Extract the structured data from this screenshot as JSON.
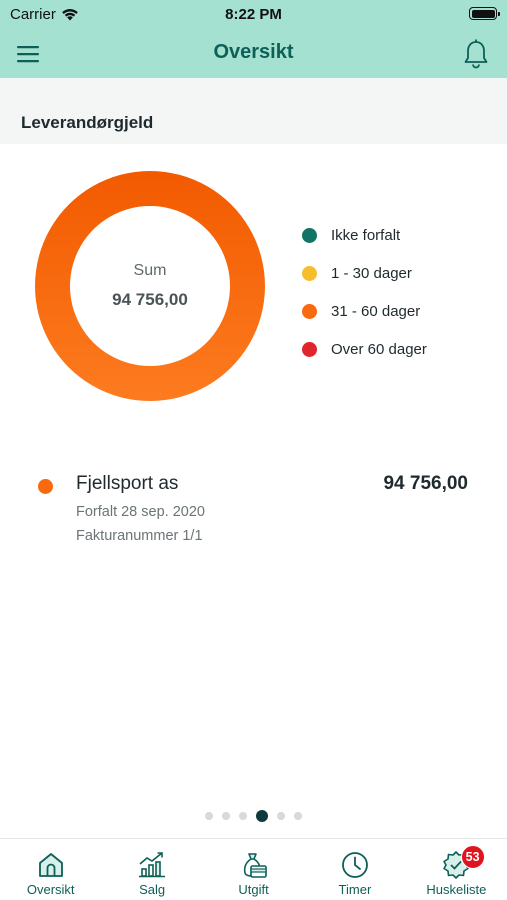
{
  "status_bar": {
    "carrier": "Carrier",
    "time": "8:22 PM"
  },
  "nav": {
    "title": "Oversikt"
  },
  "section": {
    "title": "Leverandørgjeld"
  },
  "donut": {
    "sum_label": "Sum",
    "sum_value": "94 756,00",
    "colors": {
      "ring_start": "#f25a00",
      "ring_end": "#fd7b1f"
    }
  },
  "chart_data": {
    "type": "pie",
    "categories": [
      "Ikke forfalt",
      "1 - 30 dager",
      "31 - 60 dager",
      "Over 60 dager"
    ],
    "values": [
      0,
      0,
      94756.0,
      0
    ],
    "colors": [
      "#127466",
      "#f6bd2f",
      "#f96a0f",
      "#e0262c"
    ],
    "legend": "right"
  },
  "legend": [
    {
      "label": "Ikke forfalt",
      "color": "#127466"
    },
    {
      "label": "1 - 30 dager",
      "color": "#f6bd2f"
    },
    {
      "label": "31 - 60 dager",
      "color": "#f96a0f"
    },
    {
      "label": "Over 60 dager",
      "color": "#e0262c"
    }
  ],
  "entry": {
    "name": "Fjellsport as",
    "amount": "94 756,00",
    "due": "Forfalt 28 sep. 2020",
    "invoice": "Fakturanummer 1/1"
  },
  "pager": {
    "count": 6,
    "active_index": 3
  },
  "tabs": [
    {
      "label": "Oversikt",
      "icon": "home-icon"
    },
    {
      "label": "Salg",
      "icon": "sales-chart-icon"
    },
    {
      "label": "Utgift",
      "icon": "expense-bag-icon"
    },
    {
      "label": "Timer",
      "icon": "clock-icon"
    },
    {
      "label": "Huskeliste",
      "icon": "gear-check-icon",
      "badge": "53"
    }
  ],
  "accent": "#0d5f57",
  "header_bg": "#a5e1d0"
}
